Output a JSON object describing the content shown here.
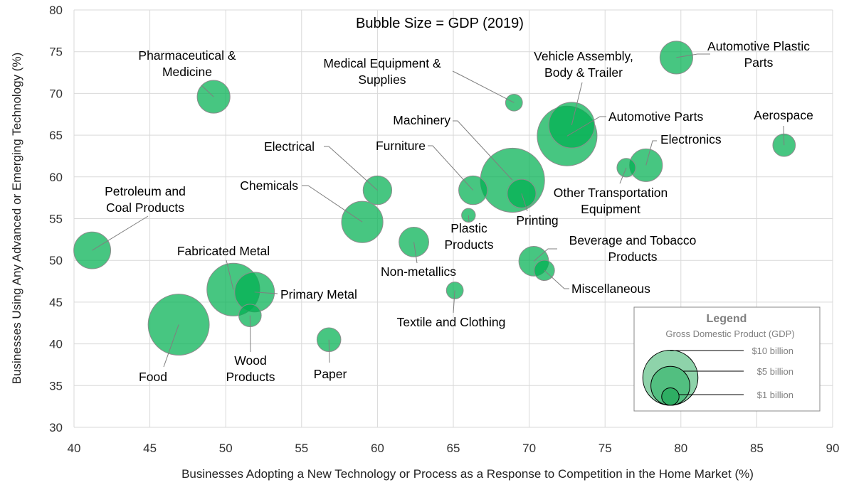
{
  "chart_data": {
    "type": "bubble",
    "title": "Bubble Size = GDP (2019)",
    "xlabel": "Businesses Adopting a New Technology or Process as a Response to Competition in the Home Market (%)",
    "ylabel": "Businesses Using Any Advanced or Emerging  Technology (%)",
    "xlim": [
      40,
      90
    ],
    "ylim": [
      30,
      80
    ],
    "xticks": [
      "40",
      "45",
      "50",
      "55",
      "60",
      "65",
      "70",
      "75",
      "80",
      "85",
      "90"
    ],
    "yticks": [
      "30",
      "35",
      "40",
      "45",
      "50",
      "55",
      "60",
      "65",
      "70",
      "75",
      "80"
    ],
    "grid": true,
    "bubble_color": "#00b050",
    "size_variable": "GDP (billion $, 2019)",
    "points": [
      {
        "name": "Automotive Plastic Parts",
        "label_lines": [
          "Automotive Plastic",
          "Parts"
        ],
        "x": 79.7,
        "y": 74.3,
        "gdp": 3.4
      },
      {
        "name": "Vehicle Assembly, Body & Trailer",
        "label_lines": [
          "Vehicle Assembly,",
          "Body & Trailer"
        ],
        "x": 72.8,
        "y": 66.2,
        "gdp": 6.6
      },
      {
        "name": "Automotive Parts",
        "label_lines": [
          "Automotive Parts"
        ],
        "x": 72.5,
        "y": 64.9,
        "gdp": 11.3
      },
      {
        "name": "Medical Equipment & Supplies",
        "label_lines": [
          "Medical Equipment &",
          "Supplies"
        ],
        "x": 69.0,
        "y": 68.9,
        "gdp": 0.9
      },
      {
        "name": "Pharmaceutical & Medicine",
        "label_lines": [
          "Pharmaceutical &",
          "Medicine"
        ],
        "x": 49.2,
        "y": 69.6,
        "gdp": 3.4
      },
      {
        "name": "Aerospace",
        "label_lines": [
          "Aerospace"
        ],
        "x": 86.8,
        "y": 63.8,
        "gdp": 1.6
      },
      {
        "name": "Electronics",
        "label_lines": [
          "Electronics"
        ],
        "x": 77.7,
        "y": 61.4,
        "gdp": 3.4
      },
      {
        "name": "Other Transportation Equipment",
        "label_lines": [
          "Other Transportation",
          "Equipment"
        ],
        "x": 76.4,
        "y": 61.1,
        "gdp": 1.1
      },
      {
        "name": "Machinery",
        "label_lines": [
          "Machinery"
        ],
        "x": 68.9,
        "y": 59.6,
        "gdp": 13.0
      },
      {
        "name": "Printing",
        "label_lines": [
          "Printing"
        ],
        "x": 69.5,
        "y": 58.0,
        "gdp": 2.6
      },
      {
        "name": "Furniture",
        "label_lines": [
          "Furniture"
        ],
        "x": 66.3,
        "y": 58.4,
        "gdp": 2.6
      },
      {
        "name": "Electrical",
        "label_lines": [
          "Electrical"
        ],
        "x": 60.0,
        "y": 58.4,
        "gdp": 2.6
      },
      {
        "name": "Chemicals",
        "label_lines": [
          "Chemicals"
        ],
        "x": 59.0,
        "y": 54.6,
        "gdp": 5.4
      },
      {
        "name": "Plastic Products",
        "label_lines": [
          "Plastic",
          "Products"
        ],
        "x": 66.0,
        "y": 55.4,
        "gdp": 0.6
      },
      {
        "name": "Non-metallics",
        "label_lines": [
          "Non-metallics"
        ],
        "x": 62.4,
        "y": 52.2,
        "gdp": 2.8
      },
      {
        "name": "Petroleum and Coal Products",
        "label_lines": [
          "Petroleum and",
          "Coal Products"
        ],
        "x": 41.2,
        "y": 51.2,
        "gdp": 4.3
      },
      {
        "name": "Beverage and Tobacco Products",
        "label_lines": [
          "Beverage and Tobacco",
          "Products"
        ],
        "x": 70.3,
        "y": 49.9,
        "gdp": 2.8
      },
      {
        "name": "Miscellaneous",
        "label_lines": [
          "Miscellaneous"
        ],
        "x": 71.0,
        "y": 48.8,
        "gdp": 1.3
      },
      {
        "name": "Fabricated Metal",
        "label_lines": [
          "Fabricated Metal"
        ],
        "x": 50.5,
        "y": 46.5,
        "gdp": 8.8
      },
      {
        "name": "Primary Metal",
        "label_lines": [
          "Primary Metal"
        ],
        "x": 51.9,
        "y": 46.2,
        "gdp": 5.0
      },
      {
        "name": "Wood Products",
        "label_lines": [
          "Wood",
          "Products"
        ],
        "x": 51.6,
        "y": 43.4,
        "gdp": 1.6
      },
      {
        "name": "Textile and Clothing",
        "label_lines": [
          "Textile and Clothing"
        ],
        "x": 65.1,
        "y": 46.4,
        "gdp": 0.9
      },
      {
        "name": "Food",
        "label_lines": [
          "Food"
        ],
        "x": 46.9,
        "y": 42.3,
        "gdp": 11.8
      },
      {
        "name": "Paper",
        "label_lines": [
          "Paper"
        ],
        "x": 56.8,
        "y": 40.5,
        "gdp": 1.8
      }
    ],
    "legend": {
      "title": "Legend",
      "subtitle": "Gross Domestic Product (GDP)",
      "placement": "bottom-right",
      "items": [
        {
          "label": "$10 billion",
          "gdp": 10,
          "color": "#8ed3aa"
        },
        {
          "label": "$5 billion",
          "gdp": 5,
          "color": "#52bf80"
        },
        {
          "label": "$1 billion",
          "gdp": 1,
          "color": "#2eae63"
        }
      ]
    }
  }
}
